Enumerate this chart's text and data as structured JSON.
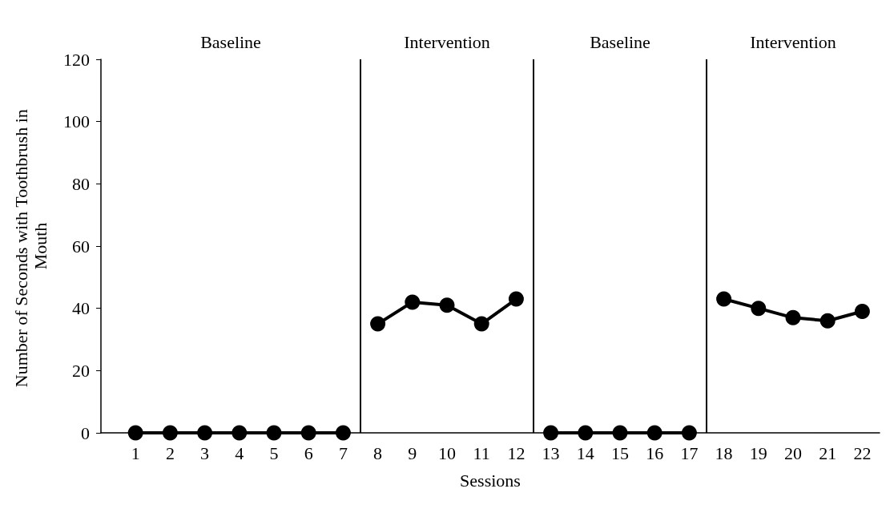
{
  "chart_data": {
    "type": "line",
    "xlabel": "Sessions",
    "ylabel": "Number of Seconds with Toothbrush in Mouth",
    "xlim": [
      0,
      22.5
    ],
    "xticks": [
      1,
      2,
      3,
      4,
      5,
      6,
      7,
      8,
      9,
      10,
      11,
      12,
      13,
      14,
      15,
      16,
      17,
      18,
      19,
      20,
      21,
      22
    ],
    "ylim": [
      0,
      120
    ],
    "yticks": [
      0,
      20,
      40,
      60,
      80,
      100,
      120
    ],
    "series": [
      {
        "color": "#000000",
        "x": [
          1,
          2,
          3,
          4,
          5,
          6,
          7
        ],
        "values": [
          0,
          0,
          0,
          0,
          0,
          0,
          0
        ]
      },
      {
        "color": "#000000",
        "x": [
          8,
          9,
          10,
          11,
          12
        ],
        "values": [
          35,
          42,
          41,
          35,
          43
        ]
      },
      {
        "color": "#000000",
        "x": [
          13,
          14,
          15,
          16,
          17
        ],
        "values": [
          0,
          0,
          0,
          0,
          0
        ]
      },
      {
        "color": "#000000",
        "x": [
          18,
          19,
          20,
          21,
          22
        ],
        "values": [
          43,
          40,
          37,
          36,
          39
        ]
      }
    ],
    "ref_lines": [
      {
        "axis": "x",
        "value": 7.5,
        "color": "#000000"
      },
      {
        "axis": "x",
        "value": 12.5,
        "color": "#000000"
      },
      {
        "axis": "x",
        "value": 17.5,
        "color": "#000000"
      }
    ],
    "annotations": [
      "Baseline",
      "Intervention",
      "Baseline",
      "Intervention"
    ],
    "marker": "circle",
    "line_style": "solid",
    "grid": false
  }
}
